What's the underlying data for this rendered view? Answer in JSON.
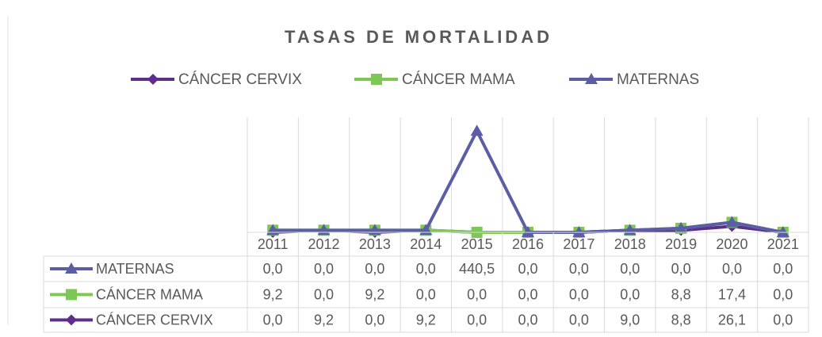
{
  "chart_data": {
    "type": "line",
    "stacked": true,
    "title": "TASAS DE MORTALIDAD",
    "categories": [
      "2011",
      "2012",
      "2013",
      "2014",
      "2015",
      "2016",
      "2017",
      "2018",
      "2019",
      "2020",
      "2021"
    ],
    "ylim": [
      0,
      500
    ],
    "grid": true,
    "series": [
      {
        "name": "CÁNCER CERVIX",
        "color": "#5d2e8c",
        "marker": "diamond",
        "values": [
          0,
          9.2,
          0,
          9.2,
          0,
          0,
          0,
          9.0,
          8.8,
          26.1,
          0
        ],
        "value_labels": [
          "0,0",
          "9,2",
          "0,0",
          "9,2",
          "0,0",
          "0,0",
          "0,0",
          "9,0",
          "8,8",
          "26,1",
          "0,0"
        ]
      },
      {
        "name": "CÁNCER MAMA",
        "color": "#7dc855",
        "marker": "square",
        "values": [
          9.2,
          0,
          9.2,
          0,
          0,
          0,
          0,
          0,
          8.8,
          17.4,
          0
        ],
        "value_labels": [
          "9,2",
          "0,0",
          "9,2",
          "0,0",
          "0,0",
          "0,0",
          "0,0",
          "0,0",
          "8,8",
          "17,4",
          "0,0"
        ]
      },
      {
        "name": "MATERNAS",
        "color": "#5b5ea6",
        "marker": "triangle",
        "values": [
          0,
          0,
          0,
          0,
          440.5,
          0,
          0,
          0,
          0,
          0,
          0
        ],
        "value_labels": [
          "0,0",
          "0,0",
          "0,0",
          "0,0",
          "440,5",
          "0,0",
          "0,0",
          "0,0",
          "0,0",
          "0,0",
          "0,0"
        ]
      }
    ]
  }
}
